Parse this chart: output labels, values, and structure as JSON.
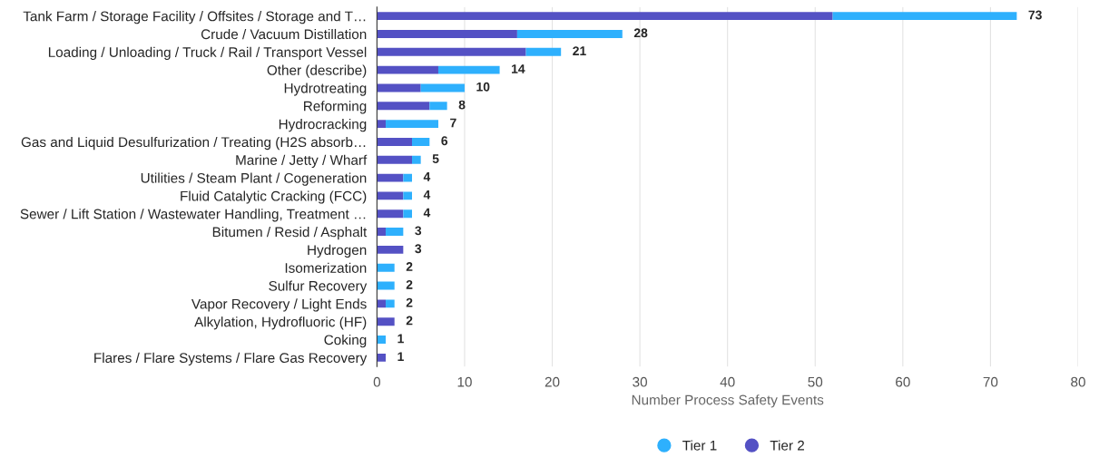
{
  "chart_data": {
    "type": "bar",
    "orientation": "horizontal",
    "stacked": true,
    "categories": [
      "Tank Farm / Storage Facility / Offsites / Storage and T…",
      "Crude / Vacuum Distillation",
      "Loading / Unloading / Truck / Rail / Transport Vessel",
      "Other (describe)",
      "Hydrotreating",
      "Reforming",
      "Hydrocracking",
      "Gas and Liquid Desulfurization / Treating (H2S absorb…",
      "Marine / Jetty / Wharf",
      "Utilities / Steam Plant / Cogeneration",
      "Fluid Catalytic Cracking (FCC)",
      "Sewer / Lift Station / Wastewater Handling, Treatment …",
      "Bitumen / Resid / Asphalt",
      "Hydrogen",
      "Isomerization",
      "Sulfur Recovery",
      "Vapor Recovery / Light Ends",
      "Alkylation, Hydrofluoric (HF)",
      "Coking",
      "Flares / Flare Systems / Flare Gas Recovery"
    ],
    "series": [
      {
        "name": "Tier 2",
        "color": "#5451c4",
        "values": [
          52,
          16,
          17,
          7,
          5,
          6,
          1,
          4,
          4,
          3,
          3,
          3,
          1,
          3,
          0,
          0,
          1,
          2,
          0,
          1
        ]
      },
      {
        "name": "Tier 1",
        "color": "#2eb0fd",
        "values": [
          21,
          12,
          4,
          7,
          5,
          2,
          6,
          2,
          1,
          1,
          1,
          1,
          2,
          0,
          2,
          2,
          1,
          0,
          1,
          0
        ]
      }
    ],
    "totals": [
      "73",
      "28",
      "21",
      "14",
      "10",
      "8",
      "7",
      "6",
      "5",
      "4",
      "4",
      "4",
      "3",
      "3",
      "2",
      "2",
      "2",
      "2",
      "1",
      "1"
    ],
    "xlim": [
      0,
      80
    ],
    "xticks": [
      0,
      10,
      20,
      30,
      40,
      50,
      60,
      70,
      80
    ],
    "xlabel": "Number Process Safety Events",
    "grid": "x",
    "legend": "bottom"
  }
}
